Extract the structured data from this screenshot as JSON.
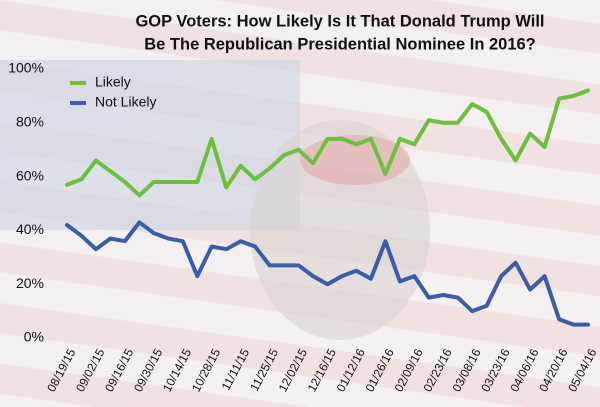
{
  "chart_data": {
    "type": "line",
    "title": [
      "GOP Voters: How Likely Is It That Donald Trump Will",
      "Be The Republican Presidential Nominee In 2016?"
    ],
    "categories": [
      "08/19/15",
      null,
      "09/02/15",
      null,
      "09/16/15",
      null,
      "09/30/15",
      null,
      "10/14/15",
      null,
      "10/28/15",
      null,
      "11/11/15",
      null,
      "11/25/15",
      null,
      "12/02/15",
      null,
      "12/16/15",
      null,
      "01/12/16",
      null,
      "01/26/16",
      null,
      "02/09/16",
      null,
      "02/23/16",
      null,
      "03/08/16",
      null,
      "03/23/16",
      null,
      "04/06/16",
      null,
      "04/20/16",
      null,
      "05/04/16"
    ],
    "series": [
      {
        "name": "Likely",
        "color": "#6cbf3f",
        "values": [
          57,
          59,
          66,
          62,
          58,
          53,
          58,
          58,
          58,
          58,
          74,
          56,
          64,
          59,
          63,
          68,
          70,
          65,
          74,
          74,
          72,
          74,
          61,
          74,
          72,
          81,
          80,
          80,
          87,
          84,
          74,
          66,
          76,
          71,
          89,
          90,
          92
        ]
      },
      {
        "name": "Not Likely",
        "color": "#3b5ca8",
        "values": [
          42,
          38,
          33,
          37,
          36,
          43,
          39,
          37,
          36,
          23,
          34,
          33,
          36,
          34,
          27,
          27,
          27,
          23,
          20,
          23,
          25,
          22,
          36,
          21,
          23,
          15,
          16,
          15,
          10,
          12,
          23,
          28,
          18,
          23,
          7,
          5,
          5
        ]
      }
    ],
    "ylim": [
      0,
      100
    ],
    "yticks": [
      {
        "value": 0,
        "label": "0%"
      },
      {
        "value": 20,
        "label": "20%"
      },
      {
        "value": 40,
        "label": "40%"
      },
      {
        "value": 60,
        "label": "60%"
      },
      {
        "value": 80,
        "label": "80%"
      },
      {
        "value": 100,
        "label": "100%"
      }
    ],
    "legend": "top-left"
  }
}
